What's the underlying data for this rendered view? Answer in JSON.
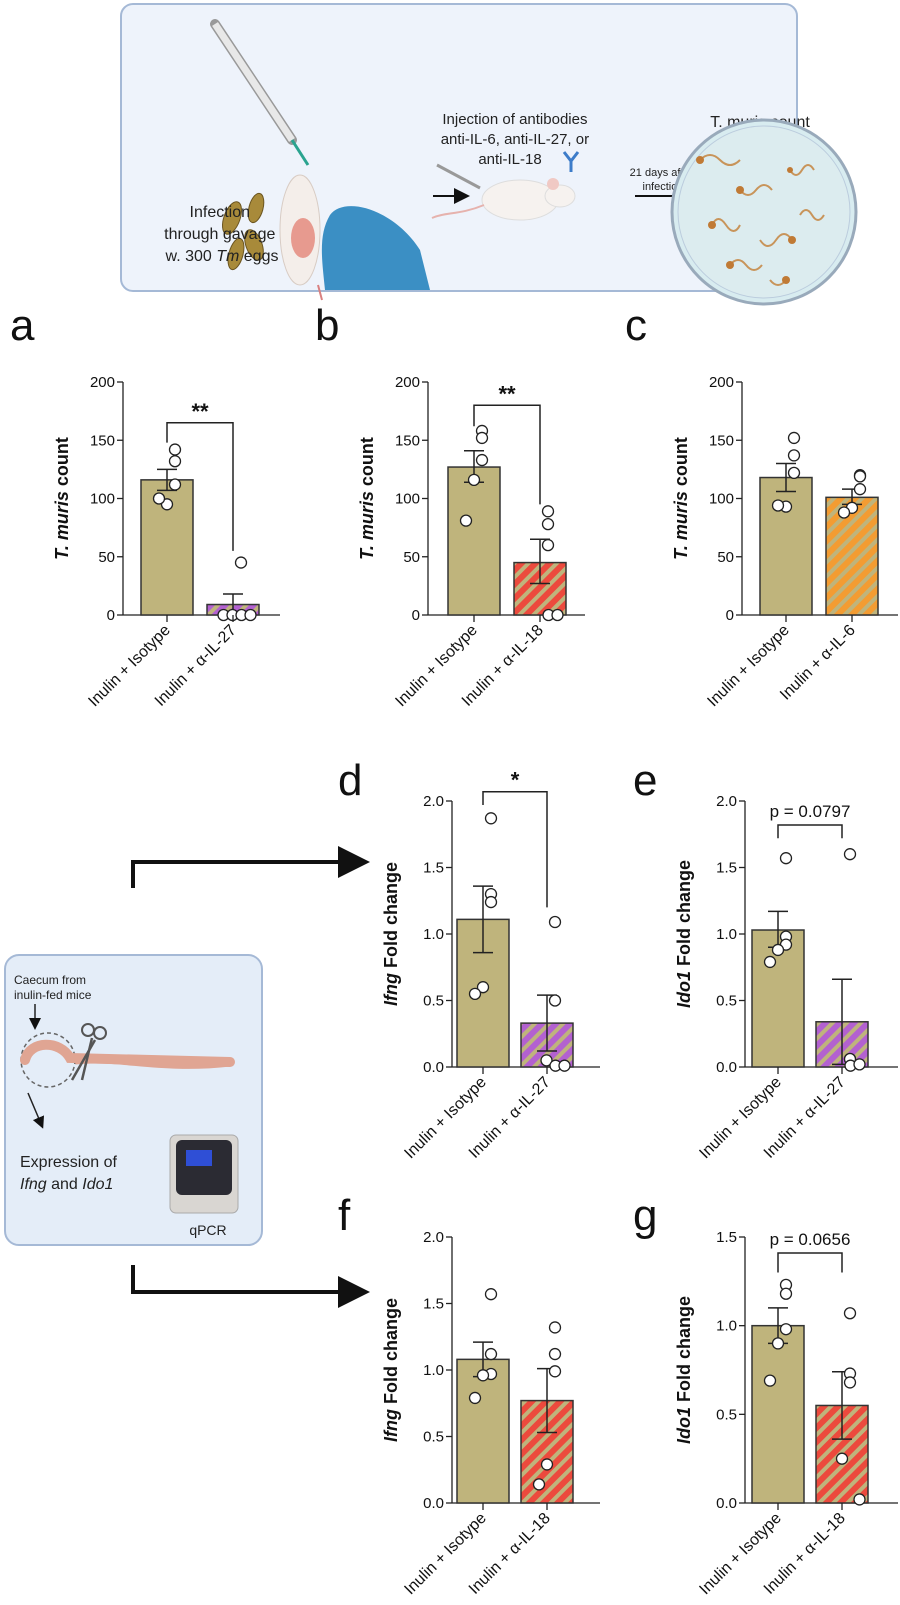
{
  "schematic_top": {
    "infection_line1": "Infection",
    "infection_line2": "through gavage",
    "infection_line3_prefix": "w. 300 ",
    "infection_line3_italic": "Tm",
    "infection_line3_suffix": " eggs",
    "injection_line1": "Injection of antibodies",
    "injection_line2": "anti-IL-6, anti-IL-27, or",
    "injection_line3": "anti-IL-18",
    "arrow_label_line1": "21 days after",
    "arrow_label_line2": "infection",
    "dish_title": "T. muris count"
  },
  "schematic_bottom": {
    "caecum_line1": "Caecum from",
    "caecum_line2": "inulin-fed mice",
    "expression_line1": "Expression of",
    "expression_gene1": "Ifng",
    "expression_and": " and ",
    "expression_gene2": "Ido1",
    "machine_label": "qPCR"
  },
  "colors": {
    "isotype": "#bfb47c",
    "anti_il27": "#b361d0",
    "anti_il18": "#ec4a3d",
    "anti_il6": "#f39c32"
  },
  "chart_data": [
    {
      "panel": "a",
      "type": "bar",
      "ylabel_italic": "T. muris",
      "ylabel_rest": " count",
      "ylim": [
        0,
        200
      ],
      "yticks": [
        "0",
        "50",
        "100",
        "150",
        "200"
      ],
      "ytick_values": [
        0,
        50,
        100,
        150,
        200
      ],
      "categories": [
        "Inulin + Isotype",
        "Inulin + α-IL-27"
      ],
      "means": [
        116,
        9
      ],
      "sem_low": [
        107,
        0
      ],
      "sem_high": [
        125,
        18
      ],
      "points": [
        [
          142,
          132,
          112,
          95,
          100
        ],
        [
          45,
          0,
          0,
          0,
          0
        ]
      ],
      "bar_colors": [
        "isotype",
        "anti_il27"
      ],
      "significance": "**"
    },
    {
      "panel": "b",
      "type": "bar",
      "ylabel_italic": "T. muris",
      "ylabel_rest": " count",
      "ylim": [
        0,
        200
      ],
      "yticks": [
        "0",
        "50",
        "100",
        "150",
        "200"
      ],
      "ytick_values": [
        0,
        50,
        100,
        150,
        200
      ],
      "categories": [
        "Inulin + Isotype",
        "Inulin + α-IL-18"
      ],
      "means": [
        127,
        45
      ],
      "sem_low": [
        114,
        27
      ],
      "sem_high": [
        141,
        65
      ],
      "points": [
        [
          158,
          152,
          133,
          116,
          81
        ],
        [
          89,
          78,
          60,
          0,
          0
        ]
      ],
      "bar_colors": [
        "isotype",
        "anti_il18"
      ],
      "significance": "**"
    },
    {
      "panel": "c",
      "type": "bar",
      "ylabel_italic": "T. muris",
      "ylabel_rest": " count",
      "ylim": [
        0,
        200
      ],
      "yticks": [
        "0",
        "50",
        "100",
        "150",
        "200"
      ],
      "ytick_values": [
        0,
        50,
        100,
        150,
        200
      ],
      "categories": [
        "Inulin + Isotype",
        "Inulin + α-IL-6"
      ],
      "means": [
        118,
        101
      ],
      "sem_low": [
        106,
        95
      ],
      "sem_high": [
        130,
        108
      ],
      "points": [
        [
          152,
          137,
          122,
          93,
          94
        ],
        [
          120,
          119,
          108,
          92,
          88
        ]
      ],
      "bar_colors": [
        "isotype",
        "anti_il6"
      ],
      "significance": ""
    },
    {
      "panel": "d",
      "type": "bar",
      "ylabel_italic": "Ifng",
      "ylabel_rest": " Fold change",
      "ylim": [
        0,
        2.0
      ],
      "yticks": [
        "0.0",
        "0.5",
        "1.0",
        "1.5",
        "2.0"
      ],
      "ytick_values": [
        0,
        0.5,
        1,
        1.5,
        2
      ],
      "categories": [
        "Inulin + Isotype",
        "Inulin + α-IL-27"
      ],
      "means": [
        1.11,
        0.33
      ],
      "sem_low": [
        0.86,
        0.12
      ],
      "sem_high": [
        1.36,
        0.54
      ],
      "points": [
        [
          1.87,
          1.3,
          1.24,
          0.6,
          0.55
        ],
        [
          1.09,
          0.5,
          0.05,
          0.01,
          0.01
        ]
      ],
      "bar_colors": [
        "isotype",
        "anti_il27"
      ],
      "significance": "*"
    },
    {
      "panel": "e",
      "type": "bar",
      "ylabel_italic": "Ido1",
      "ylabel_rest": " Fold change",
      "ylim": [
        0,
        2.0
      ],
      "yticks": [
        "0.0",
        "0.5",
        "1.0",
        "1.5",
        "2.0"
      ],
      "ytick_values": [
        0,
        0.5,
        1,
        1.5,
        2
      ],
      "categories": [
        "Inulin + Isotype",
        "Inulin + α-IL-27"
      ],
      "means": [
        1.03,
        0.34
      ],
      "sem_low": [
        0.9,
        0.02
      ],
      "sem_high": [
        1.17,
        0.66
      ],
      "points": [
        [
          1.57,
          0.98,
          0.92,
          0.88,
          0.79
        ],
        [
          1.6,
          0.06,
          0.06,
          0.01,
          0.02
        ]
      ],
      "bar_colors": [
        "isotype",
        "anti_il27"
      ],
      "significance": "p = 0.0797"
    },
    {
      "panel": "f",
      "type": "bar",
      "ylabel_italic": "Ifng",
      "ylabel_rest": " Fold change",
      "ylim": [
        0,
        2.0
      ],
      "yticks": [
        "0.0",
        "0.5",
        "1.0",
        "1.5",
        "2.0"
      ],
      "ytick_values": [
        0,
        0.5,
        1,
        1.5,
        2
      ],
      "categories": [
        "Inulin + Isotype",
        "Inulin + α-IL-18"
      ],
      "means": [
        1.08,
        0.77
      ],
      "sem_low": [
        0.95,
        0.53
      ],
      "sem_high": [
        1.21,
        1.01
      ],
      "points": [
        [
          1.57,
          1.12,
          0.97,
          0.96,
          0.79
        ],
        [
          1.32,
          1.12,
          0.99,
          0.29,
          0.14
        ]
      ],
      "bar_colors": [
        "isotype",
        "anti_il18"
      ],
      "significance": ""
    },
    {
      "panel": "g",
      "type": "bar",
      "ylabel_italic": "Ido1",
      "ylabel_rest": " Fold change",
      "ylim": [
        0,
        1.5
      ],
      "yticks": [
        "0.0",
        "0.5",
        "1.0",
        "1.5"
      ],
      "ytick_values": [
        0,
        0.5,
        1,
        1.5
      ],
      "categories": [
        "Inulin + Isotype",
        "Inulin + α-IL-18"
      ],
      "means": [
        1.0,
        0.55
      ],
      "sem_low": [
        0.9,
        0.36
      ],
      "sem_high": [
        1.1,
        0.74
      ],
      "points": [
        [
          1.23,
          1.18,
          0.98,
          0.9,
          0.69
        ],
        [
          1.07,
          0.73,
          0.68,
          0.25,
          0.02
        ]
      ],
      "bar_colors": [
        "isotype",
        "anti_il18"
      ],
      "significance": "p = 0.0656"
    }
  ]
}
